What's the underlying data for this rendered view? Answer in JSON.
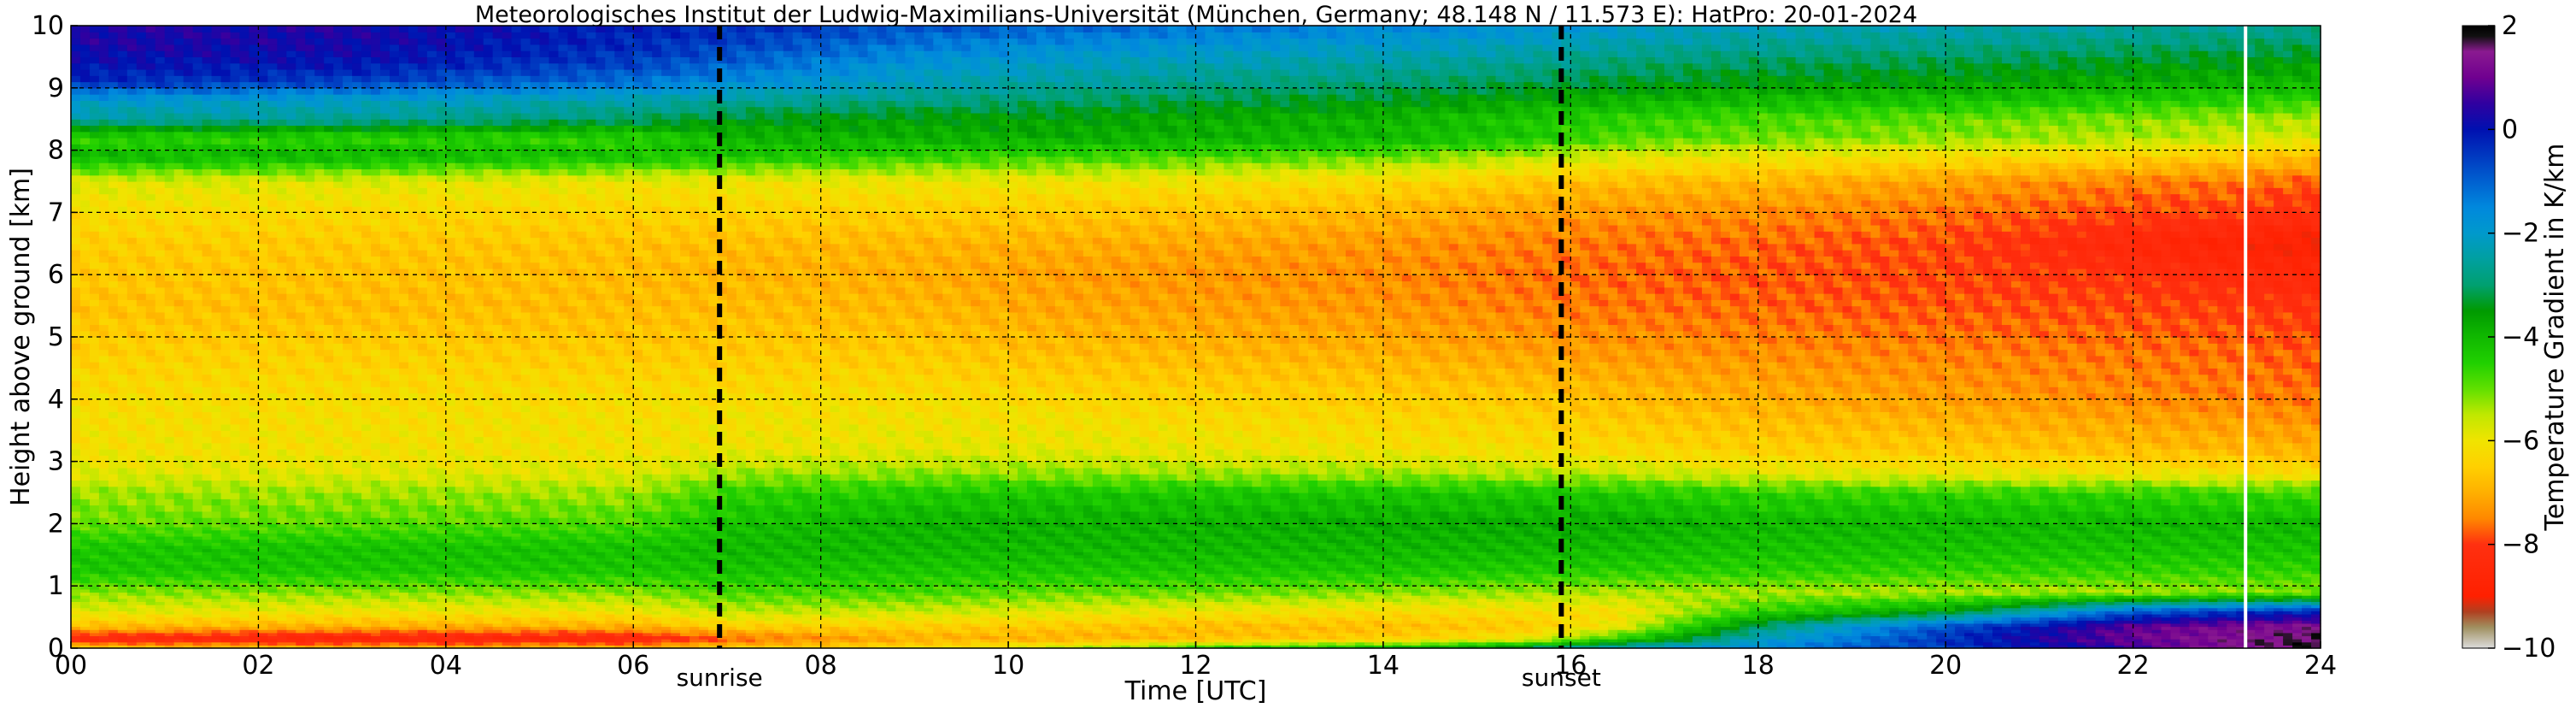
{
  "chart_data": {
    "type": "heatmap",
    "title": "Meteorologisches Institut der Ludwig-Maximilians-Universität (München, Germany; 48.148 N / 11.573 E):    HatPro: 20-01-2024",
    "xlabel": "Time [UTC]",
    "ylabel": "Height above ground [km]",
    "xlim": [
      0,
      24
    ],
    "ylim": [
      0,
      10
    ],
    "x_ticks": [
      0,
      2,
      4,
      6,
      8,
      10,
      12,
      14,
      16,
      18,
      20,
      22,
      24
    ],
    "x_tick_labels": [
      "00",
      "02",
      "04",
      "06",
      "08",
      "10",
      "12",
      "14",
      "16",
      "18",
      "20",
      "22",
      "24"
    ],
    "y_ticks": [
      0,
      1,
      2,
      3,
      4,
      5,
      6,
      7,
      8,
      9,
      10
    ],
    "y_tick_labels": [
      "0",
      "1",
      "2",
      "3",
      "4",
      "5",
      "6",
      "7",
      "8",
      "9",
      "10"
    ],
    "grid": true,
    "annotations": [
      {
        "name": "sunrise",
        "label": "sunrise",
        "x": 6.92
      },
      {
        "name": "sunset",
        "label": "sunset",
        "x": 15.9
      }
    ],
    "current_time_marker_x": 23.2,
    "colorbar": {
      "label": "Temperature Gradient in K/km",
      "range": [
        -10,
        2
      ],
      "ticks": [
        2,
        0,
        -2,
        -4,
        -6,
        -8,
        -10
      ],
      "tick_labels": [
        "2",
        "0",
        "−2",
        "−4",
        "−6",
        "−8",
        "−10"
      ],
      "colors": [
        {
          "v": -10.0,
          "c": "#dcdcdc"
        },
        {
          "v": -9.6,
          "c": "#a09060"
        },
        {
          "v": -9.3,
          "c": "#b04020"
        },
        {
          "v": -9.0,
          "c": "#ff2000"
        },
        {
          "v": -8.0,
          "c": "#ff3010"
        },
        {
          "v": -7.5,
          "c": "#ff8800"
        },
        {
          "v": -7.0,
          "c": "#ffb000"
        },
        {
          "v": -6.5,
          "c": "#ffd000"
        },
        {
          "v": -6.0,
          "c": "#f0e400"
        },
        {
          "v": -5.5,
          "c": "#c0e800"
        },
        {
          "v": -5.0,
          "c": "#60e000"
        },
        {
          "v": -4.5,
          "c": "#20d000"
        },
        {
          "v": -4.0,
          "c": "#10b800"
        },
        {
          "v": -3.5,
          "c": "#009a00"
        },
        {
          "v": -3.0,
          "c": "#00a070"
        },
        {
          "v": -2.5,
          "c": "#00a0a0"
        },
        {
          "v": -2.0,
          "c": "#0099cc"
        },
        {
          "v": -1.5,
          "c": "#0088dd"
        },
        {
          "v": -1.0,
          "c": "#0060d0"
        },
        {
          "v": 0.0,
          "c": "#0010b0"
        },
        {
          "v": 0.5,
          "c": "#3000a0"
        },
        {
          "v": 1.0,
          "c": "#700090"
        },
        {
          "v": 1.5,
          "c": "#8a1a90"
        },
        {
          "v": 1.8,
          "c": "#101010"
        },
        {
          "v": 2.0,
          "c": "#000000"
        }
      ]
    },
    "time_keyframes": [
      0,
      3,
      6,
      7,
      9,
      10.5,
      12,
      14,
      15.5,
      16.5,
      18,
      20,
      22,
      23.2,
      24
    ],
    "height_levels_km": [
      0,
      0.15,
      0.35,
      0.6,
      0.9,
      1.25,
      1.6,
      2.0,
      2.5,
      2.8,
      3.2,
      4.0,
      4.8,
      5.5,
      6.0,
      6.5,
      7.0,
      7.5,
      7.9,
      8.2,
      8.5,
      8.8,
      9.1,
      9.4,
      9.7,
      10.0
    ],
    "gradient_profiles_K_per_km": [
      [
        -6.5,
        -8.5,
        -6.8,
        -5.8,
        -5.2,
        -4.3,
        -4.3,
        -5.0,
        -5.3,
        -5.8,
        -6.1,
        -6.2,
        -6.5,
        -6.7,
        -6.6,
        -6.5,
        -6.2,
        -5.8,
        -4.0,
        -4.6,
        -2.5,
        -2.0,
        -0.3,
        0.0,
        0.3,
        0.3
      ],
      [
        -6.8,
        -8.8,
        -7.0,
        -6.0,
        -5.2,
        -4.3,
        -4.2,
        -4.9,
        -5.3,
        -5.8,
        -6.1,
        -6.2,
        -6.5,
        -6.8,
        -6.7,
        -6.6,
        -6.3,
        -5.8,
        -4.0,
        -4.6,
        -2.6,
        -2.1,
        -0.6,
        0.0,
        0.2,
        0.3
      ],
      [
        -6.8,
        -8.6,
        -7.0,
        -6.0,
        -5.2,
        -4.3,
        -4.2,
        -4.8,
        -5.3,
        -5.8,
        -6.1,
        -6.2,
        -6.6,
        -6.8,
        -6.8,
        -6.7,
        -6.4,
        -6.0,
        -4.2,
        -4.6,
        -3.0,
        -2.4,
        -1.2,
        -0.6,
        -0.3,
        -0.2
      ],
      [
        -6.5,
        -7.8,
        -6.5,
        -5.5,
        -4.8,
        -4.2,
        -4.0,
        -4.2,
        -4.6,
        -5.3,
        -6.0,
        -6.2,
        -6.6,
        -6.8,
        -6.9,
        -6.8,
        -6.4,
        -6.0,
        -4.3,
        -4.0,
        -3.4,
        -2.6,
        -1.6,
        -1.0,
        -0.6,
        -0.3
      ],
      [
        -6.2,
        -7.0,
        -6.5,
        -5.6,
        -4.8,
        -4.3,
        -4.0,
        -3.9,
        -4.4,
        -5.2,
        -5.9,
        -6.2,
        -6.6,
        -6.9,
        -7.0,
        -6.9,
        -6.5,
        -6.0,
        -4.6,
        -3.9,
        -3.6,
        -2.8,
        -2.2,
        -1.8,
        -1.3,
        -0.8
      ],
      [
        -5.5,
        -7.0,
        -6.6,
        -5.8,
        -5.0,
        -4.3,
        -4.0,
        -3.9,
        -4.3,
        -5.2,
        -5.9,
        -6.3,
        -6.8,
        -7.1,
        -7.2,
        -7.0,
        -6.6,
        -6.0,
        -4.7,
        -3.8,
        -3.6,
        -3.0,
        -2.5,
        -2.1,
        -1.6,
        -1.0
      ],
      [
        -4.5,
        -6.8,
        -6.8,
        -6.0,
        -5.0,
        -4.3,
        -4.0,
        -3.9,
        -4.3,
        -5.3,
        -6.0,
        -6.4,
        -6.9,
        -7.2,
        -7.3,
        -7.1,
        -6.7,
        -6.1,
        -4.8,
        -3.9,
        -3.8,
        -3.2,
        -2.7,
        -2.3,
        -1.8,
        -1.2
      ],
      [
        -4.0,
        -6.5,
        -6.8,
        -6.2,
        -5.2,
        -4.3,
        -4.0,
        -3.8,
        -4.3,
        -5.3,
        -6.1,
        -6.5,
        -7.0,
        -7.3,
        -7.4,
        -7.3,
        -6.9,
        -6.3,
        -5.0,
        -4.0,
        -4.0,
        -3.4,
        -2.9,
        -2.5,
        -2.0,
        -1.5
      ],
      [
        -3.0,
        -6.0,
        -6.6,
        -6.2,
        -5.3,
        -4.4,
        -4.0,
        -3.8,
        -4.3,
        -5.4,
        -6.2,
        -6.6,
        -7.2,
        -7.5,
        -7.6,
        -7.5,
        -7.2,
        -6.6,
        -5.5,
        -4.3,
        -4.3,
        -3.7,
        -3.1,
        -2.7,
        -2.2,
        -1.7
      ],
      [
        -2.0,
        -4.5,
        -6.0,
        -6.2,
        -5.4,
        -4.5,
        -4.1,
        -3.8,
        -4.4,
        -5.5,
        -6.3,
        -6.8,
        -7.3,
        -7.6,
        -7.7,
        -7.6,
        -7.3,
        -6.8,
        -5.8,
        -4.8,
        -4.6,
        -3.9,
        -3.3,
        -2.9,
        -2.4,
        -2.0
      ],
      [
        -1.5,
        -2.2,
        -3.0,
        -4.6,
        -5.4,
        -4.5,
        -4.2,
        -4.0,
        -4.6,
        -5.8,
        -6.5,
        -7.0,
        -7.4,
        -7.7,
        -7.8,
        -7.7,
        -7.4,
        -6.9,
        -6.0,
        -5.0,
        -4.8,
        -4.1,
        -3.5,
        -3.1,
        -2.6,
        -2.2
      ],
      [
        -0.5,
        -0.4,
        -0.8,
        -3.6,
        -5.4,
        -4.6,
        -4.2,
        -4.0,
        -4.6,
        -5.9,
        -6.6,
        -7.2,
        -7.5,
        -7.8,
        -7.9,
        -7.9,
        -7.6,
        -7.2,
        -6.2,
        -5.2,
        -5.0,
        -4.2,
        -3.6,
        -3.2,
        -2.7,
        -2.3
      ],
      [
        0.5,
        1.0,
        0.9,
        -1.0,
        -5.4,
        -4.6,
        -4.2,
        -4.0,
        -4.6,
        -6.0,
        -6.8,
        -7.4,
        -7.6,
        -7.9,
        -8.1,
        -8.5,
        -7.9,
        -7.5,
        -6.4,
        -5.4,
        -5.2,
        -4.4,
        -3.8,
        -3.4,
        -2.9,
        -2.5
      ],
      [
        1.5,
        1.4,
        1.2,
        -0.5,
        -5.2,
        -4.6,
        -4.2,
        -4.0,
        -4.7,
        -6.1,
        -6.9,
        -7.5,
        -7.7,
        -8.0,
        -8.3,
        -8.8,
        -8.0,
        -7.6,
        -6.6,
        -5.6,
        -5.3,
        -4.5,
        -3.9,
        -3.5,
        -3.0,
        -2.6
      ],
      [
        1.8,
        1.8,
        1.4,
        -0.3,
        -5.2,
        -4.6,
        -4.2,
        -4.0,
        -4.7,
        -6.2,
        -7.0,
        -7.6,
        -7.8,
        -8.1,
        -8.5,
        -9.0,
        -8.2,
        -7.8,
        -6.8,
        -5.8,
        -5.5,
        -4.6,
        -4.0,
        -3.6,
        -3.1,
        -2.7
      ]
    ]
  }
}
